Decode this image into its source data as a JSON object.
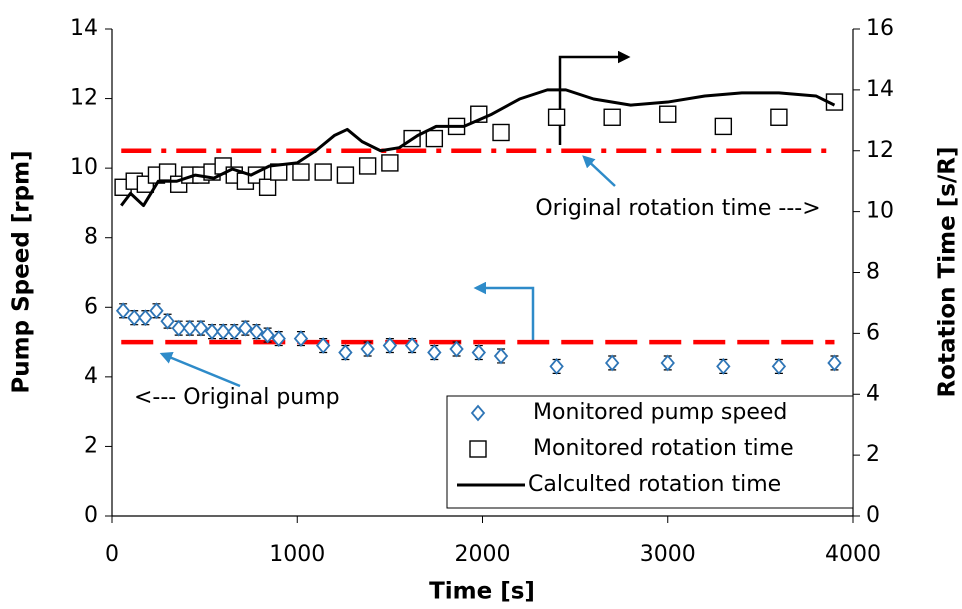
{
  "chart_data": {
    "type": "scatter",
    "xlabel": "Time [s]",
    "ylabel": "Pump Speed [rpm]",
    "y2label": "Rotation Time [s/R]",
    "xlim": [
      0,
      4000
    ],
    "xticks": [
      0,
      1000,
      2000,
      3000,
      4000
    ],
    "ylim": [
      0,
      14
    ],
    "yticks": [
      0,
      2,
      4,
      6,
      8,
      10,
      12,
      14
    ],
    "y2lim": [
      0,
      16
    ],
    "y2ticks": [
      0,
      2,
      4,
      6,
      8,
      10,
      12,
      14,
      16
    ],
    "legend": "lower right",
    "series": [
      {
        "name": "Monitored pump speed",
        "color": "#2e75b6",
        "marker": "diamond",
        "axis": "y",
        "x": [
          60,
          120,
          180,
          240,
          300,
          360,
          420,
          480,
          540,
          600,
          660,
          720,
          780,
          840,
          900,
          1020,
          1140,
          1260,
          1380,
          1500,
          1620,
          1740,
          1860,
          1980,
          2100,
          2400,
          2700,
          3000,
          3300,
          3600,
          3900
        ],
        "values": [
          5.9,
          5.7,
          5.7,
          5.9,
          5.6,
          5.4,
          5.4,
          5.4,
          5.3,
          5.3,
          5.3,
          5.4,
          5.3,
          5.2,
          5.1,
          5.1,
          4.9,
          4.7,
          4.8,
          4.9,
          4.9,
          4.7,
          4.8,
          4.7,
          4.6,
          4.3,
          4.4,
          4.4,
          4.3,
          4.3,
          4.4
        ],
        "errors": [
          0.2,
          0.2,
          0.2,
          0.2,
          0.2,
          0.2,
          0.2,
          0.2,
          0.2,
          0.2,
          0.2,
          0.2,
          0.2,
          0.2,
          0.2,
          0.2,
          0.2,
          0.2,
          0.2,
          0.2,
          0.2,
          0.2,
          0.2,
          0.2,
          0.2,
          0.2,
          0.2,
          0.2,
          0.2,
          0.2,
          0.2
        ]
      },
      {
        "name": "Monitored rotation time",
        "color": "#000000",
        "marker": "square",
        "axis": "y2",
        "x": [
          60,
          120,
          180,
          240,
          300,
          360,
          420,
          480,
          540,
          600,
          660,
          720,
          780,
          840,
          900,
          1020,
          1140,
          1260,
          1380,
          1500,
          1620,
          1740,
          1860,
          1980,
          2100,
          2400,
          2700,
          3000,
          3300,
          3600,
          3900
        ],
        "values": [
          10.8,
          11.0,
          10.9,
          11.2,
          11.3,
          10.9,
          11.2,
          11.2,
          11.3,
          11.5,
          11.2,
          11.0,
          11.2,
          10.8,
          11.3,
          11.3,
          11.3,
          11.2,
          11.5,
          11.6,
          12.4,
          12.4,
          12.8,
          13.2,
          12.6,
          13.1,
          13.1,
          13.2,
          12.8,
          13.1,
          13.6
        ]
      },
      {
        "name": "Calculted rotation time",
        "color": "#000000",
        "marker": "line",
        "axis": "y2",
        "x": [
          50,
          100,
          170,
          250,
          350,
          450,
          550,
          650,
          750,
          850,
          1000,
          1100,
          1200,
          1270,
          1350,
          1450,
          1550,
          1650,
          1750,
          1900,
          2050,
          2200,
          2350,
          2450,
          2600,
          2800,
          3000,
          3200,
          3400,
          3600,
          3800,
          3900
        ],
        "values": [
          10.2,
          10.6,
          10.2,
          11.0,
          11.0,
          11.2,
          11.1,
          11.4,
          11.2,
          11.5,
          11.6,
          12.0,
          12.5,
          12.7,
          12.3,
          12.0,
          12.1,
          12.5,
          12.8,
          12.8,
          13.2,
          13.7,
          14.0,
          14.0,
          13.7,
          13.5,
          13.6,
          13.8,
          13.9,
          13.9,
          13.8,
          13.5
        ]
      }
    ],
    "reference_lines": [
      {
        "value": 5,
        "axis": "y",
        "x": [
          50,
          3900
        ],
        "color": "#ff0000",
        "style": "dash"
      },
      {
        "value": 12,
        "axis": "y2",
        "x": [
          50,
          3900
        ],
        "color": "#ff0000",
        "style": "dashdot"
      }
    ],
    "annotations": [
      {
        "text": "Original rotation time --->"
      },
      {
        "text": "<--- Original pump"
      }
    ]
  }
}
